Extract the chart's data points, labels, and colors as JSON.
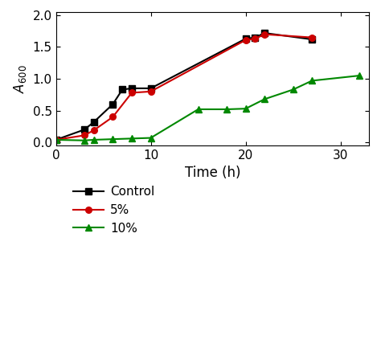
{
  "control_x": [
    0,
    3,
    4,
    6,
    7,
    8,
    10,
    20,
    21,
    22,
    27
  ],
  "control_y": [
    0.04,
    0.2,
    0.32,
    0.6,
    0.83,
    0.85,
    0.85,
    1.63,
    1.65,
    1.72,
    1.62
  ],
  "pct5_x": [
    0,
    3,
    4,
    6,
    8,
    10,
    20,
    21,
    22,
    27
  ],
  "pct5_y": [
    0.04,
    0.11,
    0.19,
    0.4,
    0.78,
    0.8,
    1.61,
    1.63,
    1.7,
    1.65
  ],
  "pct10_x": [
    0,
    3,
    4,
    6,
    8,
    10,
    15,
    18,
    20,
    22,
    25,
    27,
    32
  ],
  "pct10_y": [
    0.04,
    0.03,
    0.04,
    0.05,
    0.06,
    0.07,
    0.52,
    0.52,
    0.53,
    0.68,
    0.83,
    0.97,
    1.05
  ],
  "control_color": "#000000",
  "pct5_color": "#cc0000",
  "pct10_color": "#008800",
  "xlabel": "Time (h)",
  "ylabel": "$A_{600}$",
  "xlim": [
    0,
    33
  ],
  "ylim": [
    -0.05,
    2.05
  ],
  "xticks": [
    0,
    10,
    20,
    30
  ],
  "yticks": [
    0.0,
    0.5,
    1.0,
    1.5,
    2.0
  ],
  "legend_labels": [
    "Control",
    "5%",
    "10%"
  ],
  "label_fontsize": 12,
  "tick_fontsize": 11,
  "legend_fontsize": 11
}
